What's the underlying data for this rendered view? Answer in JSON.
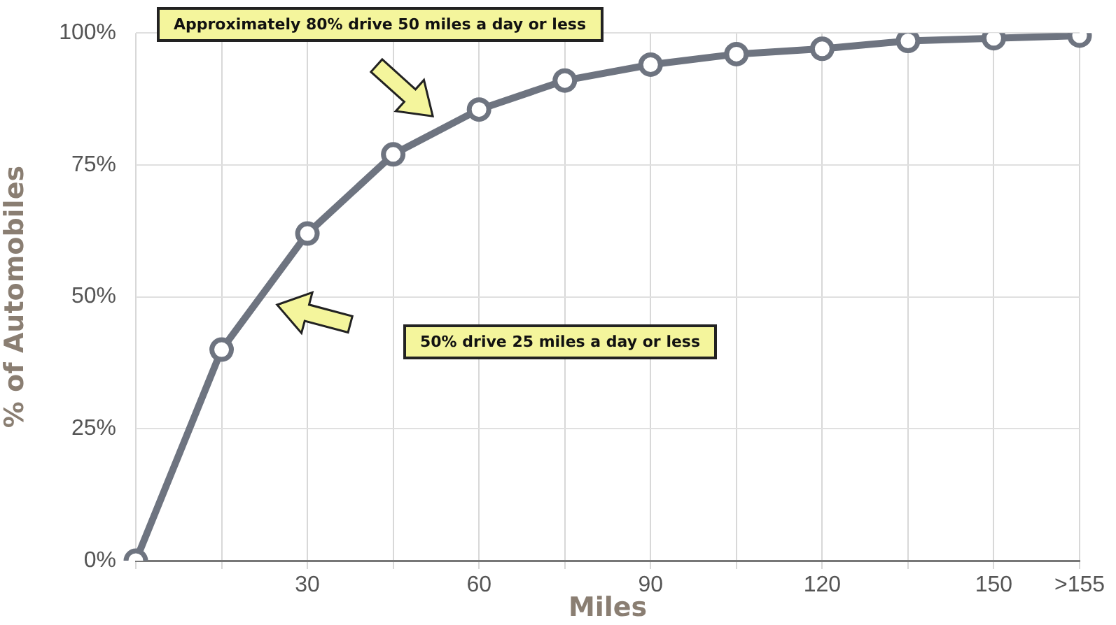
{
  "chart_data": {
    "type": "line",
    "xlabel": "Miles",
    "ylabel": "% of Automobiles",
    "categories": [
      null,
      null,
      "30",
      null,
      "60",
      null,
      "90",
      null,
      "120",
      null,
      "150",
      ">155"
    ],
    "series": [
      {
        "color": "#6e7480",
        "values": [
          0,
          40,
          62,
          77,
          85.5,
          91,
          94,
          96,
          97,
          98.5,
          99,
          99.5
        ]
      }
    ],
    "ylim": [
      0,
      100
    ],
    "yticks": [
      {
        "value": 0,
        "label": "0%"
      },
      {
        "value": 25,
        "label": "25%"
      },
      {
        "value": 50,
        "label": "50%"
      },
      {
        "value": 75,
        "label": "75%"
      },
      {
        "value": 100,
        "label": "100%"
      }
    ],
    "grid": true,
    "marker": "circle",
    "line_style": "solid",
    "annotations": [
      "Approximately 80% drive 50 miles a day or less",
      "50% drive 25 miles a day or less"
    ]
  }
}
